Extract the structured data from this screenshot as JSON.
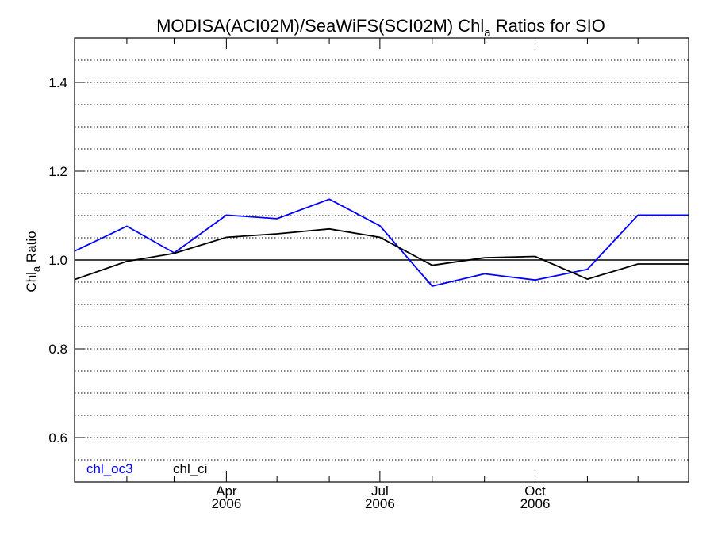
{
  "chart_data": {
    "type": "line",
    "title": {
      "prefix": "MODISA(ACI02M)/SeaWiFS(SCI02M)  Chl",
      "subscript": "a",
      "suffix": " Ratios for SIO"
    },
    "ylabel": {
      "prefix": "Chl",
      "subscript": "a",
      "suffix": " Ratio"
    },
    "xlabel": "",
    "ylim": [
      0.5,
      1.5
    ],
    "y_ticks": [
      "0.6",
      "0.8",
      "1.0",
      "1.2",
      "1.4"
    ],
    "y_tick_values": [
      0.6,
      0.8,
      1.0,
      1.2,
      1.4
    ],
    "y_minor_step": 0.05,
    "xlim": [
      "2006-01-01",
      "2006-12-31"
    ],
    "x_ticks": [
      {
        "month": "Apr",
        "year": "2006",
        "date": "2006-04-01"
      },
      {
        "month": "Jul",
        "year": "2006",
        "date": "2006-07-01"
      },
      {
        "month": "Oct",
        "year": "2006",
        "date": "2006-10-01"
      }
    ],
    "x_minor_dates": [
      "2006-02-01",
      "2006-03-01",
      "2006-05-01",
      "2006-06-01",
      "2006-08-01",
      "2006-09-01",
      "2006-11-01",
      "2006-12-01"
    ],
    "grid": "horizontal-dotted",
    "reference_line": 1.0,
    "legend_position": "bottom-left",
    "x": [
      "2006-01-01",
      "2006-02-01",
      "2006-03-01",
      "2006-04-01",
      "2006-05-01",
      "2006-06-01",
      "2006-07-01",
      "2006-08-01",
      "2006-09-01",
      "2006-10-01",
      "2006-11-01",
      "2006-12-01",
      "2006-12-31"
    ],
    "series": [
      {
        "name": "chl_oc3",
        "color": "#0000ff",
        "values": [
          1.02,
          1.076,
          1.016,
          1.101,
          1.093,
          1.137,
          1.077,
          0.941,
          0.969,
          0.955,
          0.979,
          1.101,
          1.101
        ]
      },
      {
        "name": "chl_ci",
        "color": "#000000",
        "values": [
          0.956,
          0.997,
          1.015,
          1.051,
          1.059,
          1.07,
          1.051,
          0.988,
          1.005,
          1.008,
          0.957,
          0.991,
          0.991
        ]
      }
    ]
  }
}
